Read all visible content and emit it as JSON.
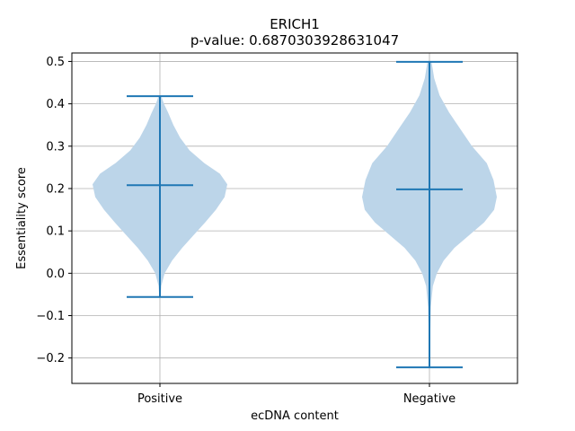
{
  "chart_data": {
    "type": "violin",
    "title": "ERICH1",
    "subtitle": "p-value: 0.6870303928631047",
    "xlabel": "ecDNA content",
    "ylabel": "Essentiality score",
    "categories": [
      "Positive",
      "Negative"
    ],
    "ylim": [
      -0.26,
      0.52
    ],
    "yticks": [
      -0.2,
      -0.1,
      0.0,
      0.1,
      0.2,
      0.3,
      0.4,
      0.5
    ],
    "ytick_labels": [
      "−0.2",
      "−0.1",
      "0.0",
      "0.1",
      "0.2",
      "0.3",
      "0.4",
      "0.5"
    ],
    "grid": true,
    "colors": {
      "body": "#bcd5e9",
      "line": "#1f77b4",
      "grid": "#b0b0b0"
    },
    "violins": [
      {
        "category": "Positive",
        "min": -0.056,
        "max": 0.418,
        "median": 0.208,
        "density": [
          [
            -0.056,
            0.01
          ],
          [
            -0.03,
            0.02
          ],
          [
            0.0,
            0.07
          ],
          [
            0.03,
            0.18
          ],
          [
            0.06,
            0.33
          ],
          [
            0.09,
            0.5
          ],
          [
            0.12,
            0.67
          ],
          [
            0.15,
            0.83
          ],
          [
            0.18,
            0.96
          ],
          [
            0.21,
            1.0
          ],
          [
            0.235,
            0.89
          ],
          [
            0.26,
            0.66
          ],
          [
            0.29,
            0.44
          ],
          [
            0.32,
            0.3
          ],
          [
            0.35,
            0.2
          ],
          [
            0.38,
            0.12
          ],
          [
            0.4,
            0.06
          ],
          [
            0.418,
            0.02
          ]
        ]
      },
      {
        "category": "Negative",
        "min": -0.222,
        "max": 0.499,
        "median": 0.198,
        "density": [
          [
            -0.222,
            0.005
          ],
          [
            -0.15,
            0.01
          ],
          [
            -0.08,
            0.02
          ],
          [
            -0.03,
            0.05
          ],
          [
            0.0,
            0.11
          ],
          [
            0.03,
            0.21
          ],
          [
            0.06,
            0.37
          ],
          [
            0.09,
            0.59
          ],
          [
            0.12,
            0.81
          ],
          [
            0.15,
            0.96
          ],
          [
            0.18,
            1.0
          ],
          [
            0.22,
            0.95
          ],
          [
            0.26,
            0.85
          ],
          [
            0.3,
            0.63
          ],
          [
            0.34,
            0.46
          ],
          [
            0.38,
            0.29
          ],
          [
            0.42,
            0.15
          ],
          [
            0.46,
            0.07
          ],
          [
            0.499,
            0.03
          ]
        ]
      }
    ]
  }
}
